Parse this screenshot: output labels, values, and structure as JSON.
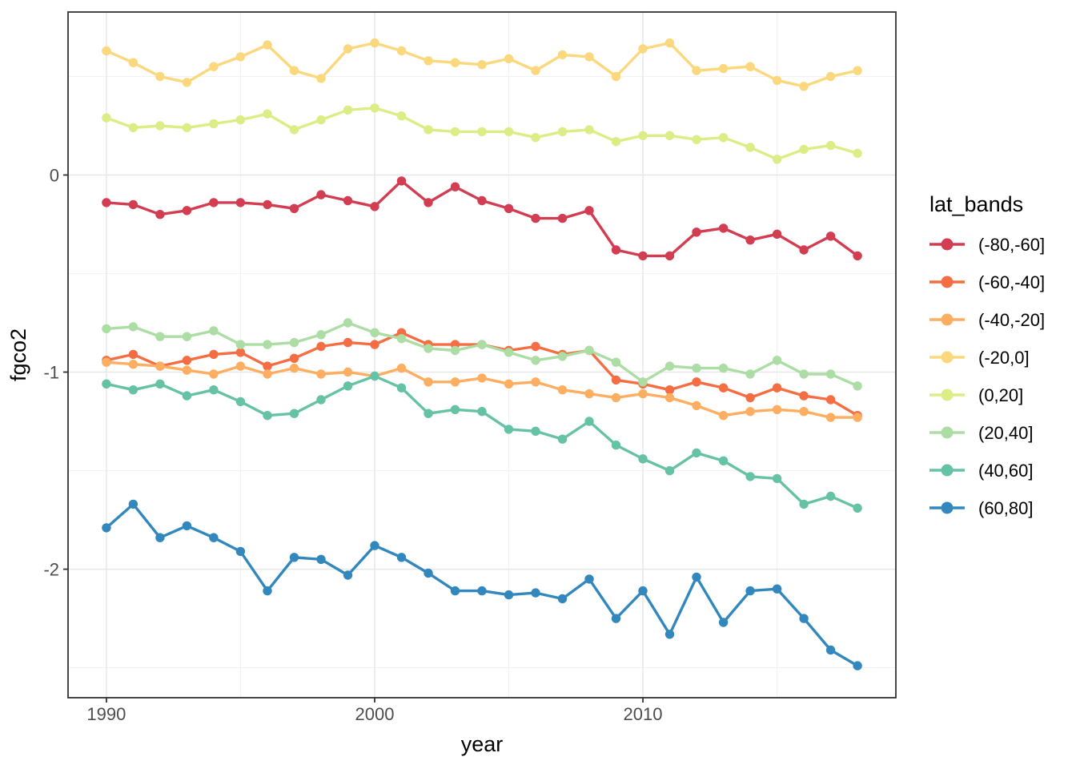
{
  "chart_data": {
    "type": "line",
    "title": "",
    "xlabel": "year",
    "ylabel": "fgco2",
    "legend_title": "lat_bands",
    "legend_position": "right",
    "grid": true,
    "panel_border_color": "#333333",
    "grid_major_color": "#e7e7e7",
    "grid_minor_color": "#f2f2f2",
    "tick_color": "#333333",
    "tick_label_color": "#4d4d4d",
    "xlim": [
      1988.57,
      2019.43
    ],
    "ylim": [
      -2.652,
      0.827
    ],
    "x_ticks": [
      1990,
      2000,
      2010
    ],
    "x_tick_labels": [
      "1990",
      "2000",
      "2010"
    ],
    "x_minor_ticks": [
      1995,
      2005,
      2015
    ],
    "y_ticks": [
      0,
      -1,
      -2
    ],
    "y_tick_labels": [
      "0",
      "-1",
      "-2"
    ],
    "y_minor_ticks": [
      0.5,
      -0.5,
      -1.5,
      -2.5
    ],
    "x": [
      1990,
      1991,
      1992,
      1993,
      1994,
      1995,
      1996,
      1997,
      1998,
      1999,
      2000,
      2001,
      2002,
      2003,
      2004,
      2005,
      2006,
      2007,
      2008,
      2009,
      2010,
      2011,
      2012,
      2013,
      2014,
      2015,
      2016,
      2017,
      2018
    ],
    "series": [
      {
        "name": "(-80,-60]",
        "color": "#d23d52",
        "values": [
          -0.14,
          -0.15,
          -0.2,
          -0.18,
          -0.14,
          -0.14,
          -0.15,
          -0.17,
          -0.1,
          -0.13,
          -0.16,
          -0.03,
          -0.14,
          -0.06,
          -0.13,
          -0.17,
          -0.22,
          -0.22,
          -0.18,
          -0.38,
          -0.41,
          -0.41,
          -0.29,
          -0.27,
          -0.33,
          -0.3,
          -0.38,
          -0.31,
          -0.41
        ]
      },
      {
        "name": "(-60,-40]",
        "color": "#f46d43",
        "values": [
          -0.94,
          -0.91,
          -0.97,
          -0.94,
          -0.91,
          -0.9,
          -0.97,
          -0.93,
          -0.87,
          -0.85,
          -0.86,
          -0.8,
          -0.86,
          -0.86,
          -0.86,
          -0.89,
          -0.87,
          -0.91,
          -0.89,
          -1.04,
          -1.06,
          -1.09,
          -1.05,
          -1.08,
          -1.13,
          -1.08,
          -1.12,
          -1.14,
          -1.22
        ]
      },
      {
        "name": "(-40,-20]",
        "color": "#fdae61",
        "values": [
          -0.95,
          -0.96,
          -0.97,
          -0.99,
          -1.01,
          -0.97,
          -1.01,
          -0.98,
          -1.01,
          -1.0,
          -1.02,
          -0.98,
          -1.05,
          -1.05,
          -1.03,
          -1.06,
          -1.05,
          -1.09,
          -1.11,
          -1.13,
          -1.11,
          -1.13,
          -1.17,
          -1.22,
          -1.2,
          -1.19,
          -1.2,
          -1.23,
          -1.23
        ]
      },
      {
        "name": "(-20,0]",
        "color": "#fbd87d",
        "values": [
          0.63,
          0.57,
          0.5,
          0.47,
          0.55,
          0.6,
          0.66,
          0.53,
          0.49,
          0.64,
          0.67,
          0.63,
          0.58,
          0.57,
          0.56,
          0.59,
          0.53,
          0.61,
          0.6,
          0.5,
          0.64,
          0.67,
          0.53,
          0.54,
          0.55,
          0.48,
          0.45,
          0.5,
          0.53
        ]
      },
      {
        "name": "(0,20]",
        "color": "#dbee86",
        "values": [
          0.29,
          0.24,
          0.25,
          0.24,
          0.26,
          0.28,
          0.31,
          0.23,
          0.28,
          0.33,
          0.34,
          0.3,
          0.23,
          0.22,
          0.22,
          0.22,
          0.19,
          0.22,
          0.23,
          0.17,
          0.2,
          0.2,
          0.18,
          0.19,
          0.14,
          0.08,
          0.13,
          0.15,
          0.11
        ]
      },
      {
        "name": "(20,40]",
        "color": "#abdda4",
        "values": [
          -0.78,
          -0.77,
          -0.82,
          -0.82,
          -0.79,
          -0.86,
          -0.86,
          -0.85,
          -0.81,
          -0.75,
          -0.8,
          -0.83,
          -0.88,
          -0.89,
          -0.86,
          -0.9,
          -0.94,
          -0.92,
          -0.89,
          -0.95,
          -1.05,
          -0.97,
          -0.98,
          -0.98,
          -1.01,
          -0.94,
          -1.01,
          -1.01,
          -1.07
        ]
      },
      {
        "name": "(40,60]",
        "color": "#66c2a5",
        "values": [
          -1.06,
          -1.09,
          -1.06,
          -1.12,
          -1.09,
          -1.15,
          -1.22,
          -1.21,
          -1.14,
          -1.07,
          -1.02,
          -1.08,
          -1.21,
          -1.19,
          -1.2,
          -1.29,
          -1.3,
          -1.34,
          -1.25,
          -1.37,
          -1.44,
          -1.5,
          -1.41,
          -1.45,
          -1.53,
          -1.54,
          -1.67,
          -1.63,
          -1.69
        ]
      },
      {
        "name": "(60,80]",
        "color": "#3288bd",
        "values": [
          -1.79,
          -1.67,
          -1.84,
          -1.78,
          -1.84,
          -1.91,
          -2.11,
          -1.94,
          -1.95,
          -2.03,
          -1.88,
          -1.94,
          -2.02,
          -2.11,
          -2.11,
          -2.13,
          -2.12,
          -2.15,
          -2.05,
          -2.25,
          -2.11,
          -2.33,
          -2.04,
          -2.27,
          -2.11,
          -2.1,
          -2.25,
          -2.41,
          -2.49
        ]
      }
    ]
  }
}
